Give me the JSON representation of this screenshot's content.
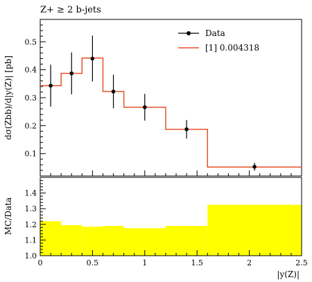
{
  "chart_data": [
    {
      "type": "step",
      "title": "Z+ ≥ 2 b-jets",
      "ylabel": "dσ(Zbb)/d|y(Z)| [pb]",
      "xlim": [
        0,
        2.5
      ],
      "ylim": [
        0.02,
        0.58
      ],
      "yticks": [
        0.1,
        0.2,
        0.3,
        0.4,
        0.5
      ],
      "yticklabels": [
        "0.1",
        "0.2",
        "0.3",
        "0.4",
        "0.5"
      ],
      "legend_position": "top-right",
      "data": {
        "name": "Data",
        "x": [
          0.1,
          0.3,
          0.5,
          0.7,
          1.0,
          1.4,
          2.05
        ],
        "y": [
          0.343,
          0.387,
          0.44,
          0.322,
          0.266,
          0.187,
          0.053
        ],
        "yerr": [
          0.075,
          0.075,
          0.082,
          0.06,
          0.048,
          0.033,
          0.014
        ]
      },
      "mc": {
        "name": "[1] 0.004318",
        "color": "#e8512a",
        "bin_edges": [
          0,
          0.2,
          0.4,
          0.6,
          0.8,
          1.2,
          1.6,
          2.5
        ],
        "values": [
          0.343,
          0.387,
          0.442,
          0.322,
          0.266,
          0.187,
          0.052
        ]
      }
    },
    {
      "type": "area",
      "ylabel": "MC/Data",
      "xlabel": "|y(Z)|",
      "xlim": [
        0,
        2.5
      ],
      "ylim": [
        1.0,
        1.5
      ],
      "xticks": [
        0,
        0.5,
        1,
        1.5,
        2,
        2.5
      ],
      "xticklabels": [
        "0",
        "0.5",
        "1",
        "1.5",
        "2",
        "2.5"
      ],
      "yticks": [
        1.0,
        1.1,
        1.2,
        1.3,
        1.4
      ],
      "yticklabels": [
        "1.0",
        "1.1",
        "1.2",
        "1.3",
        "1.4"
      ],
      "band_color": "#ffff00",
      "bin_edges": [
        0,
        0.2,
        0.4,
        0.6,
        0.8,
        1.2,
        1.6,
        2.5
      ],
      "values": [
        1.22,
        1.195,
        1.185,
        1.19,
        1.175,
        1.19,
        1.325
      ]
    }
  ]
}
